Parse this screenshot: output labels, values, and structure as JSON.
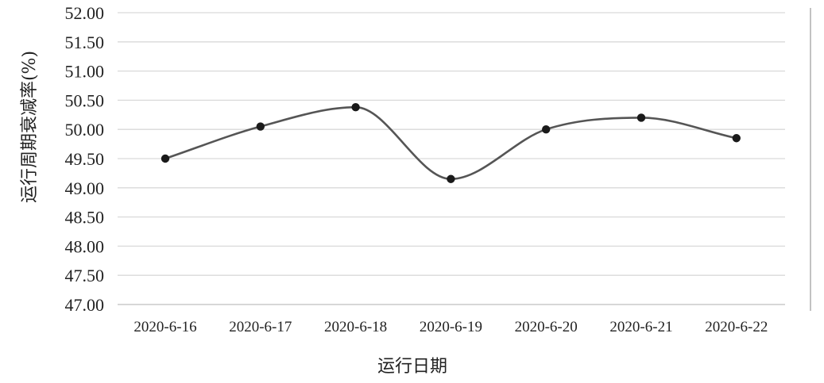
{
  "chart_data": {
    "type": "line",
    "smooth": true,
    "title": "",
    "xlabel": "运行日期",
    "ylabel": "运行周期衰减率(%)",
    "categories": [
      "2020-6-16",
      "2020-6-17",
      "2020-6-18",
      "2020-6-19",
      "2020-6-20",
      "2020-6-21",
      "2020-6-22"
    ],
    "series": [
      {
        "values": [
          49.5,
          50.05,
          50.38,
          49.15,
          50.0,
          50.2,
          49.85
        ]
      }
    ],
    "ylim": [
      47.0,
      52.0
    ],
    "yticks": [
      "47.00",
      "47.50",
      "48.00",
      "48.50",
      "49.00",
      "49.50",
      "50.00",
      "50.50",
      "51.00",
      "51.50",
      "52.00"
    ],
    "grid": true,
    "legend": "none",
    "colors": {
      "line": "#555555",
      "marker": "#1a1a1a",
      "grid": "#d9d9d9"
    }
  }
}
